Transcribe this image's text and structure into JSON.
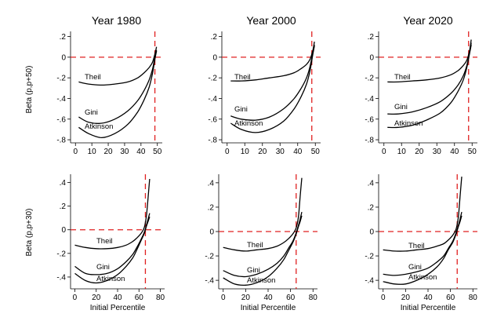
{
  "figure": {
    "row_ylabels": [
      "Beta (p,p+50)",
      "Beta (p,p+30)"
    ],
    "xlabel": "Initial Percentile"
  },
  "chart_data": [
    {
      "type": "line",
      "title": "Year 1980",
      "xlabel": "",
      "ylabel": "Beta (p,p+50)",
      "xlim": [
        -3,
        53
      ],
      "ylim": [
        -0.83,
        0.25
      ],
      "xticks": [
        0,
        10,
        20,
        30,
        40,
        50
      ],
      "yticks": [
        0.2,
        0,
        -0.2,
        -0.4,
        -0.6,
        -0.8
      ],
      "ytick_labels": [
        ".2",
        "0",
        "-.2",
        "-.4",
        "-.6",
        "-.8"
      ],
      "reference_lines": {
        "y": 0,
        "x": 48.5
      },
      "series": [
        {
          "name": "Theil",
          "x": [
            2,
            8,
            16,
            24,
            32,
            38,
            42,
            45,
            47,
            48.5,
            49.5
          ],
          "y": [
            -0.24,
            -0.26,
            -0.27,
            -0.26,
            -0.24,
            -0.2,
            -0.15,
            -0.1,
            -0.05,
            0.03,
            0.1
          ]
        },
        {
          "name": "Gini",
          "x": [
            2,
            8,
            16,
            24,
            32,
            38,
            42,
            45,
            47,
            48.5,
            49.5
          ],
          "y": [
            -0.58,
            -0.63,
            -0.64,
            -0.6,
            -0.52,
            -0.42,
            -0.32,
            -0.22,
            -0.12,
            0.0,
            0.07
          ]
        },
        {
          "name": "Atkinson",
          "x": [
            2,
            8,
            16,
            24,
            32,
            38,
            42,
            45,
            47,
            48.5,
            49.5
          ],
          "y": [
            -0.68,
            -0.74,
            -0.78,
            -0.74,
            -0.65,
            -0.53,
            -0.41,
            -0.29,
            -0.16,
            -0.02,
            0.06
          ]
        }
      ]
    },
    {
      "type": "line",
      "title": "Year 2000",
      "xlabel": "",
      "ylabel": "",
      "xlim": [
        -3,
        53
      ],
      "ylim": [
        -0.83,
        0.25
      ],
      "xticks": [
        0,
        10,
        20,
        30,
        40,
        50
      ],
      "yticks": [
        0.2,
        0,
        -0.2,
        -0.4,
        -0.6,
        -0.8
      ],
      "ytick_labels": [
        ".2",
        "0",
        "-.2",
        "-.4",
        "-.6",
        "-.8"
      ],
      "reference_lines": {
        "y": 0,
        "x": 48
      },
      "series": [
        {
          "name": "Theil",
          "x": [
            2,
            8,
            16,
            24,
            32,
            38,
            42,
            45,
            47,
            48.5,
            49.5
          ],
          "y": [
            -0.23,
            -0.23,
            -0.22,
            -0.2,
            -0.18,
            -0.15,
            -0.11,
            -0.07,
            -0.02,
            0.06,
            0.15
          ]
        },
        {
          "name": "Gini",
          "x": [
            2,
            8,
            16,
            24,
            32,
            38,
            42,
            45,
            47,
            48.5,
            49.5
          ],
          "y": [
            -0.57,
            -0.6,
            -0.61,
            -0.58,
            -0.5,
            -0.4,
            -0.3,
            -0.2,
            -0.09,
            0.04,
            0.12
          ]
        },
        {
          "name": "Atkinson",
          "x": [
            2,
            8,
            16,
            24,
            32,
            38,
            42,
            45,
            47,
            48.5,
            49.5
          ],
          "y": [
            -0.64,
            -0.7,
            -0.73,
            -0.7,
            -0.62,
            -0.5,
            -0.38,
            -0.26,
            -0.13,
            0.02,
            0.11
          ]
        }
      ]
    },
    {
      "type": "line",
      "title": "Year 2020",
      "xlabel": "",
      "ylabel": "",
      "xlim": [
        -3,
        53
      ],
      "ylim": [
        -0.83,
        0.25
      ],
      "xticks": [
        0,
        10,
        20,
        30,
        40,
        50
      ],
      "yticks": [
        0.2,
        0,
        -0.2,
        -0.4,
        -0.6,
        -0.8
      ],
      "ytick_labels": [
        ".2",
        "0",
        "-.2",
        "-.4",
        "-.6",
        "-.8"
      ],
      "reference_lines": {
        "y": 0,
        "x": 48
      },
      "series": [
        {
          "name": "Theil",
          "x": [
            2,
            8,
            16,
            24,
            32,
            38,
            42,
            45,
            47,
            48.5,
            49.5
          ],
          "y": [
            -0.24,
            -0.24,
            -0.23,
            -0.22,
            -0.2,
            -0.17,
            -0.13,
            -0.08,
            -0.03,
            0.06,
            0.17
          ]
        },
        {
          "name": "Gini",
          "x": [
            2,
            8,
            16,
            24,
            32,
            38,
            42,
            45,
            47,
            48.5,
            49.5
          ],
          "y": [
            -0.55,
            -0.55,
            -0.53,
            -0.49,
            -0.43,
            -0.35,
            -0.27,
            -0.18,
            -0.08,
            0.04,
            0.14
          ]
        },
        {
          "name": "Atkinson",
          "x": [
            2,
            8,
            16,
            24,
            32,
            38,
            42,
            45,
            47,
            48.5,
            49.5
          ],
          "y": [
            -0.68,
            -0.68,
            -0.66,
            -0.61,
            -0.54,
            -0.44,
            -0.33,
            -0.22,
            -0.1,
            0.03,
            0.12
          ]
        }
      ]
    },
    {
      "type": "line",
      "title": "",
      "xlabel": "Initial Percentile",
      "ylabel": "Beta (p,p+30)",
      "xlim": [
        -4,
        84
      ],
      "ylim": [
        -0.5,
        0.47
      ],
      "xticks": [
        0,
        20,
        40,
        60,
        80
      ],
      "yticks": [
        0.4,
        0.2,
        0,
        -0.2,
        -0.4
      ],
      "ytick_labels": [
        ".4",
        ".2",
        "0",
        "-.2",
        "-.4"
      ],
      "reference_lines": {
        "y": 0,
        "x": 66
      },
      "series": [
        {
          "name": "Theil",
          "x": [
            0,
            10,
            20,
            30,
            40,
            48,
            54,
            58,
            62,
            65,
            67,
            68.5,
            70
          ],
          "y": [
            -0.13,
            -0.15,
            -0.16,
            -0.16,
            -0.15,
            -0.13,
            -0.1,
            -0.07,
            -0.03,
            0.02,
            0.12,
            0.27,
            0.43
          ]
        },
        {
          "name": "Gini",
          "x": [
            0,
            10,
            20,
            30,
            40,
            48,
            54,
            58,
            62,
            65,
            67,
            68.5,
            70
          ],
          "y": [
            -0.31,
            -0.37,
            -0.38,
            -0.37,
            -0.33,
            -0.27,
            -0.21,
            -0.15,
            -0.08,
            -0.02,
            0.04,
            0.09,
            0.14
          ]
        },
        {
          "name": "Atkinson",
          "x": [
            0,
            10,
            20,
            30,
            40,
            48,
            54,
            58,
            62,
            65,
            67,
            68.5,
            70
          ],
          "y": [
            -0.37,
            -0.43,
            -0.45,
            -0.43,
            -0.38,
            -0.31,
            -0.24,
            -0.17,
            -0.09,
            -0.03,
            0.03,
            0.07,
            0.11
          ]
        }
      ]
    },
    {
      "type": "line",
      "title": "",
      "xlabel": "Initial Percentile",
      "ylabel": "",
      "xlim": [
        -4,
        84
      ],
      "ylim": [
        -0.47,
        0.47
      ],
      "xticks": [
        0,
        20,
        40,
        60,
        80
      ],
      "yticks": [
        0.4,
        0.2,
        0,
        -0.2,
        -0.4
      ],
      "ytick_labels": [
        ".4",
        ".2",
        "0",
        "-.2",
        "-.4"
      ],
      "reference_lines": {
        "y": 0,
        "x": 65
      },
      "series": [
        {
          "name": "Theil",
          "x": [
            0,
            10,
            20,
            30,
            40,
            48,
            54,
            58,
            62,
            65,
            67,
            68.5,
            70
          ],
          "y": [
            -0.13,
            -0.15,
            -0.16,
            -0.15,
            -0.14,
            -0.12,
            -0.09,
            -0.06,
            -0.02,
            0.03,
            0.12,
            0.28,
            0.44
          ]
        },
        {
          "name": "Gini",
          "x": [
            0,
            10,
            20,
            30,
            40,
            48,
            54,
            58,
            62,
            65,
            67,
            68.5,
            70
          ],
          "y": [
            -0.32,
            -0.36,
            -0.37,
            -0.35,
            -0.31,
            -0.26,
            -0.2,
            -0.14,
            -0.08,
            -0.01,
            0.05,
            0.1,
            0.16
          ]
        },
        {
          "name": "Atkinson",
          "x": [
            0,
            10,
            20,
            30,
            40,
            48,
            54,
            58,
            62,
            65,
            67,
            68.5,
            70
          ],
          "y": [
            -0.38,
            -0.43,
            -0.44,
            -0.42,
            -0.37,
            -0.3,
            -0.23,
            -0.16,
            -0.09,
            -0.02,
            0.04,
            0.08,
            0.13
          ]
        }
      ]
    },
    {
      "type": "line",
      "title": "",
      "xlabel": "Initial Percentile",
      "ylabel": "",
      "xlim": [
        -4,
        84
      ],
      "ylim": [
        -0.47,
        0.47
      ],
      "xticks": [
        0,
        20,
        40,
        60,
        80
      ],
      "yticks": [
        0.4,
        0.2,
        0,
        -0.2,
        -0.4
      ],
      "ytick_labels": [
        ".4",
        ".2",
        "0",
        "-.2",
        "-.4"
      ],
      "reference_lines": {
        "y": 0,
        "x": 66
      },
      "series": [
        {
          "name": "Theil",
          "x": [
            0,
            10,
            20,
            30,
            40,
            48,
            54,
            58,
            62,
            65,
            67,
            68.5,
            70
          ],
          "y": [
            -0.15,
            -0.16,
            -0.16,
            -0.15,
            -0.14,
            -0.12,
            -0.1,
            -0.07,
            -0.03,
            0.02,
            0.12,
            0.28,
            0.45
          ]
        },
        {
          "name": "Gini",
          "x": [
            0,
            10,
            20,
            30,
            40,
            48,
            54,
            58,
            62,
            65,
            67,
            68.5,
            70
          ],
          "y": [
            -0.35,
            -0.36,
            -0.35,
            -0.33,
            -0.3,
            -0.25,
            -0.2,
            -0.14,
            -0.08,
            -0.01,
            0.05,
            0.1,
            0.16
          ]
        },
        {
          "name": "Atkinson",
          "x": [
            0,
            10,
            20,
            30,
            40,
            48,
            54,
            58,
            62,
            65,
            67,
            68.5,
            70
          ],
          "y": [
            -0.41,
            -0.43,
            -0.43,
            -0.4,
            -0.35,
            -0.29,
            -0.22,
            -0.15,
            -0.09,
            -0.02,
            0.04,
            0.08,
            0.13
          ]
        }
      ]
    }
  ]
}
